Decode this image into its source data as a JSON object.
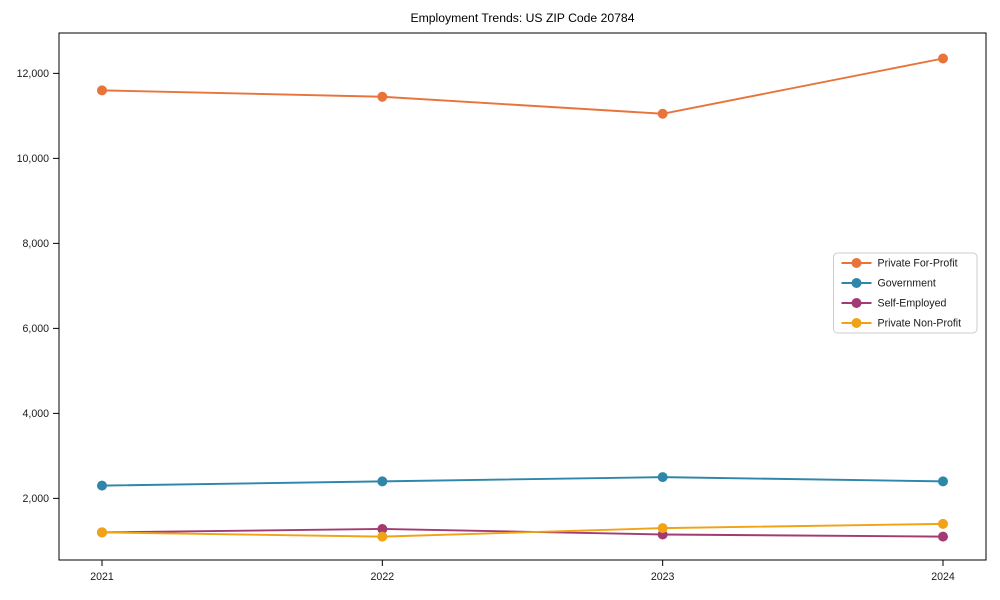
{
  "chart_data": {
    "type": "line",
    "title": "Employment Trends: US ZIP Code 20784",
    "x": [
      "2021",
      "2022",
      "2023",
      "2024"
    ],
    "series": [
      {
        "name": "Private For-Profit",
        "color": "#E8743B",
        "values": [
          11600,
          11450,
          11050,
          12350
        ]
      },
      {
        "name": "Government",
        "color": "#2E86AB",
        "values": [
          2300,
          2400,
          2500,
          2400
        ]
      },
      {
        "name": "Self-Employed",
        "color": "#A23B72",
        "values": [
          1200,
          1280,
          1150,
          1100
        ]
      },
      {
        "name": "Private Non-Profit",
        "color": "#F0A317",
        "values": [
          1200,
          1100,
          1300,
          1400
        ]
      }
    ],
    "xlabel": "",
    "ylabel": "",
    "ylim": [
      550,
      12950
    ],
    "yticks": [
      2000,
      4000,
      6000,
      8000,
      10000,
      12000
    ],
    "ytick_labels": [
      "2,000",
      "4,000",
      "6,000",
      "8,000",
      "10,000",
      "12,000"
    ],
    "xtick_labels": [
      "2021",
      "2022",
      "2023",
      "2024"
    ],
    "grid": false,
    "marker": "circle",
    "legend_position": "center-right",
    "legend_border_color": "#cccccc",
    "axis_color": "#000000",
    "text_color": "#1a1a1a"
  }
}
